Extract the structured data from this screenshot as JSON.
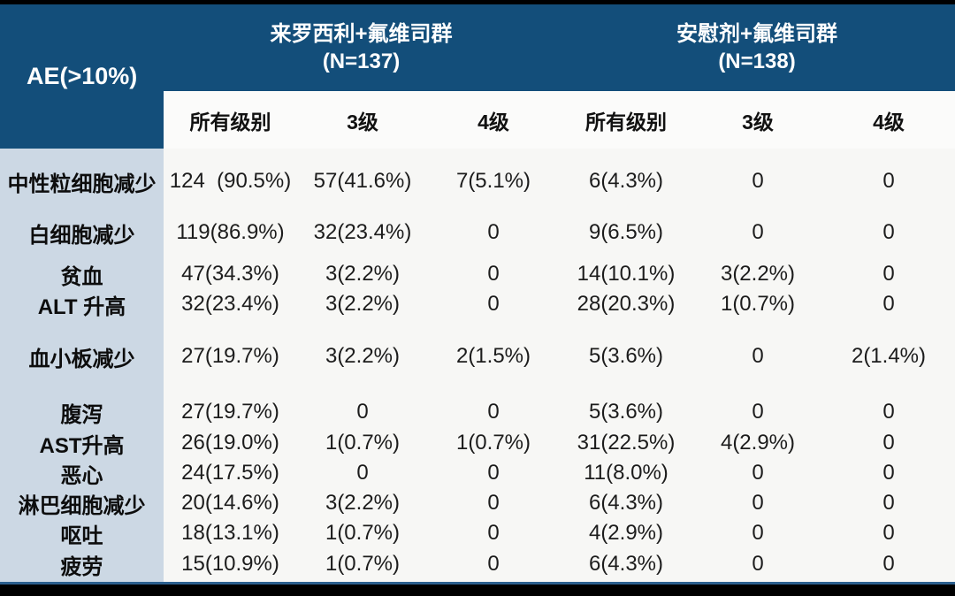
{
  "chart_data": {
    "type": "table",
    "row_header": "AE(>10%)",
    "column_groups": [
      {
        "title": "来罗西利+氟维司群",
        "n": "(N=137)",
        "sub_columns": [
          "所有级别",
          "3级",
          "4级"
        ]
      },
      {
        "title": "安慰剂+氟维司群",
        "n": "(N=138)",
        "sub_columns": [
          "所有级别",
          "3级",
          "4级"
        ]
      }
    ],
    "sub_columns_flat": [
      "所有级别",
      "3级",
      "4级",
      "所有级别",
      "3级",
      "4级"
    ],
    "rows": [
      {
        "label": "中性粒细胞减少",
        "values": [
          "124  (90.5%)",
          "57(41.6%)",
          "7(5.1%)",
          "6(4.3%)",
          "0",
          "0"
        ]
      },
      {
        "label": "白细胞减少",
        "values": [
          "119(86.9%)",
          "32(23.4%)",
          "0",
          "9(6.5%)",
          "0",
          "0"
        ]
      },
      {
        "label": "贫血",
        "values": [
          "47(34.3%)",
          "3(2.2%)",
          "0",
          "14(10.1%)",
          "3(2.2%)",
          "0"
        ]
      },
      {
        "label": "ALT 升高",
        "values": [
          "32(23.4%)",
          "3(2.2%)",
          "0",
          "28(20.3%)",
          "1(0.7%)",
          "0"
        ]
      },
      {
        "label": "血小板减少",
        "values": [
          "27(19.7%)",
          "3(2.2%)",
          "2(1.5%)",
          "5(3.6%)",
          "0",
          "2(1.4%)"
        ]
      },
      {
        "label": "腹泻",
        "values": [
          "27(19.7%)",
          "0",
          "0",
          "5(3.6%)",
          "0",
          "0"
        ]
      },
      {
        "label": "AST升高",
        "values": [
          "26(19.0%)",
          "1(0.7%)",
          "1(0.7%)",
          "31(22.5%)",
          "4(2.9%)",
          "0"
        ]
      },
      {
        "label": "恶心",
        "values": [
          "24(17.5%)",
          "0",
          "0",
          "11(8.0%)",
          "0",
          "0"
        ]
      },
      {
        "label": "淋巴细胞减少",
        "values": [
          "20(14.6%)",
          "3(2.2%)",
          "0",
          "6(4.3%)",
          "0",
          "0"
        ]
      },
      {
        "label": "呕吐",
        "values": [
          "18(13.1%)",
          "1(0.7%)",
          "0",
          "4(2.9%)",
          "0",
          "0"
        ]
      },
      {
        "label": "疲劳",
        "values": [
          "15(10.9%)",
          "1(0.7%)",
          "0",
          "6(4.3%)",
          "0",
          "0"
        ]
      }
    ]
  },
  "colors": {
    "header_blue": "#134e7a",
    "row_label_bg": "#ccd8e4",
    "subheader_bg": "#fbfbfa",
    "body_bg": "#f7f7f5",
    "divider_blue": "#2b5f8e",
    "frame_black": "#000000",
    "header_text": "#ffffff",
    "body_text": "#1c1c1c"
  }
}
